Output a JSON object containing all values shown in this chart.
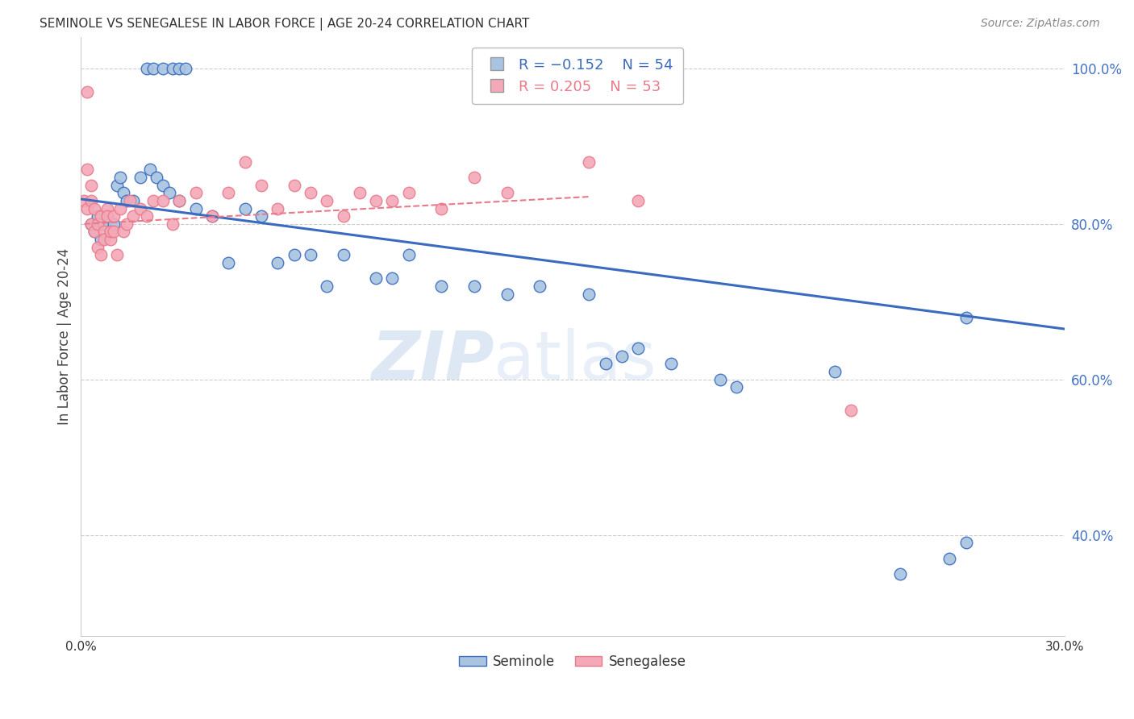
{
  "title": "SEMINOLE VS SENEGALESE IN LABOR FORCE | AGE 20-24 CORRELATION CHART",
  "source": "Source: ZipAtlas.com",
  "ylabel": "In Labor Force | Age 20-24",
  "xlim": [
    0.0,
    0.3
  ],
  "ylim": [
    0.27,
    1.04
  ],
  "yticks_right": [
    0.4,
    0.6,
    0.8,
    1.0
  ],
  "legend_blue_r": "R = -0.152",
  "legend_blue_n": "N = 54",
  "legend_pink_r": "R = 0.205",
  "legend_pink_n": "N = 53",
  "seminole_color": "#a8c4e0",
  "senegalese_color": "#f4a8b8",
  "trendline_blue_color": "#3a6bbf",
  "trendline_pink_color": "#e87a8a",
  "grid_color": "#cccccc",
  "seminole_x": [
    0.003,
    0.004,
    0.005,
    0.006,
    0.007,
    0.008,
    0.009,
    0.01,
    0.011,
    0.012,
    0.013,
    0.014,
    0.016,
    0.018,
    0.02,
    0.022,
    0.025,
    0.028,
    0.03,
    0.032,
    0.021,
    0.023,
    0.025,
    0.027,
    0.03,
    0.035,
    0.04,
    0.045,
    0.05,
    0.055,
    0.06,
    0.065,
    0.07,
    0.075,
    0.08,
    0.09,
    0.095,
    0.1,
    0.11,
    0.12,
    0.13,
    0.14,
    0.155,
    0.16,
    0.165,
    0.17,
    0.18,
    0.195,
    0.2,
    0.23,
    0.25,
    0.265,
    0.27,
    0.27
  ],
  "seminole_y": [
    0.8,
    0.79,
    0.81,
    0.78,
    0.8,
    0.81,
    0.79,
    0.8,
    0.85,
    0.86,
    0.84,
    0.83,
    0.83,
    0.86,
    1.0,
    1.0,
    1.0,
    1.0,
    1.0,
    1.0,
    0.87,
    0.86,
    0.85,
    0.84,
    0.83,
    0.82,
    0.81,
    0.75,
    0.82,
    0.81,
    0.75,
    0.76,
    0.76,
    0.72,
    0.76,
    0.73,
    0.73,
    0.76,
    0.72,
    0.72,
    0.71,
    0.72,
    0.71,
    0.62,
    0.63,
    0.64,
    0.62,
    0.6,
    0.59,
    0.61,
    0.35,
    0.37,
    0.39,
    0.68
  ],
  "senegalese_x": [
    0.001,
    0.002,
    0.002,
    0.003,
    0.003,
    0.003,
    0.004,
    0.004,
    0.005,
    0.005,
    0.006,
    0.006,
    0.007,
    0.007,
    0.008,
    0.008,
    0.009,
    0.009,
    0.01,
    0.01,
    0.011,
    0.012,
    0.013,
    0.014,
    0.015,
    0.016,
    0.018,
    0.02,
    0.022,
    0.025,
    0.028,
    0.03,
    0.035,
    0.04,
    0.045,
    0.05,
    0.055,
    0.06,
    0.065,
    0.07,
    0.075,
    0.08,
    0.085,
    0.09,
    0.095,
    0.1,
    0.11,
    0.12,
    0.13,
    0.155,
    0.17,
    0.235,
    0.002
  ],
  "senegalese_y": [
    0.83,
    0.87,
    0.82,
    0.85,
    0.83,
    0.8,
    0.82,
    0.79,
    0.8,
    0.77,
    0.81,
    0.76,
    0.79,
    0.78,
    0.82,
    0.81,
    0.78,
    0.79,
    0.81,
    0.79,
    0.76,
    0.82,
    0.79,
    0.8,
    0.83,
    0.81,
    0.82,
    0.81,
    0.83,
    0.83,
    0.8,
    0.83,
    0.84,
    0.81,
    0.84,
    0.88,
    0.85,
    0.82,
    0.85,
    0.84,
    0.83,
    0.81,
    0.84,
    0.83,
    0.83,
    0.84,
    0.82,
    0.86,
    0.84,
    0.88,
    0.83,
    0.56,
    0.97
  ]
}
